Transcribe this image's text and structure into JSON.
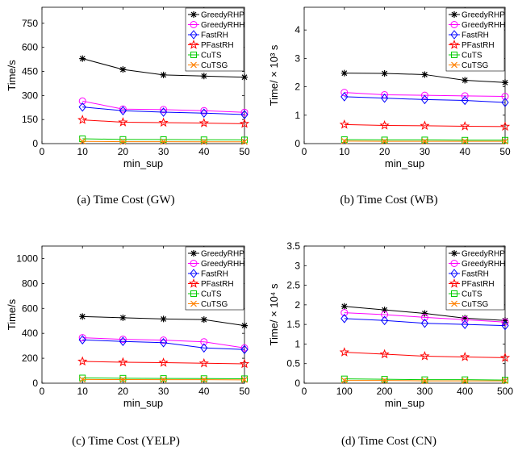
{
  "chart_data": [
    {
      "type": "line",
      "caption": "(a) Time Cost (GW)",
      "xlabel": "min_sup",
      "ylabel": "Time/s",
      "x": [
        10,
        20,
        30,
        40,
        50
      ],
      "xlim": [
        0,
        50
      ],
      "xticks": [
        0,
        10,
        20,
        30,
        40,
        50
      ],
      "ylim": [
        0,
        850
      ],
      "yticks": [
        0,
        150,
        300,
        450,
        600,
        750
      ],
      "series": [
        {
          "name": "GreedyRHP",
          "color": "#000000",
          "marker": "asterisk",
          "values": [
            530,
            462,
            428,
            421,
            414
          ]
        },
        {
          "name": "GreedyRHH",
          "color": "#ff00ff",
          "marker": "circle",
          "values": [
            265,
            215,
            212,
            205,
            195
          ]
        },
        {
          "name": "FastRH",
          "color": "#0000ff",
          "marker": "diamond",
          "values": [
            228,
            205,
            196,
            190,
            181
          ]
        },
        {
          "name": "PFastRH",
          "color": "#ff0000",
          "marker": "star",
          "values": [
            148,
            133,
            131,
            128,
            124
          ]
        },
        {
          "name": "CuTS",
          "color": "#00cc00",
          "marker": "square",
          "values": [
            30,
            26,
            25,
            24,
            23
          ]
        },
        {
          "name": "CuTSG",
          "color": "#ff8000",
          "marker": "x",
          "values": [
            14,
            12,
            12,
            11,
            11
          ]
        }
      ]
    },
    {
      "type": "line",
      "caption": "(b) Time Cost (WB)",
      "xlabel": "min_sup",
      "ylabel": "Time/ × 10³ s",
      "x": [
        10,
        20,
        30,
        40,
        50
      ],
      "xlim": [
        0,
        50
      ],
      "xticks": [
        0,
        10,
        20,
        30,
        40,
        50
      ],
      "ylim": [
        0,
        4.8
      ],
      "yticks": [
        0,
        1,
        2,
        3,
        4
      ],
      "series": [
        {
          "name": "GreedyRHP",
          "color": "#000000",
          "marker": "asterisk",
          "values": [
            2.48,
            2.47,
            2.43,
            2.23,
            2.15
          ]
        },
        {
          "name": "GreedyRHH",
          "color": "#ff00ff",
          "marker": "circle",
          "values": [
            1.8,
            1.72,
            1.7,
            1.68,
            1.66
          ]
        },
        {
          "name": "FastRH",
          "color": "#0000ff",
          "marker": "diamond",
          "values": [
            1.65,
            1.6,
            1.55,
            1.52,
            1.45
          ]
        },
        {
          "name": "PFastRH",
          "color": "#ff0000",
          "marker": "star",
          "values": [
            0.67,
            0.64,
            0.63,
            0.61,
            0.6
          ]
        },
        {
          "name": "CuTS",
          "color": "#00cc00",
          "marker": "square",
          "values": [
            0.14,
            0.13,
            0.13,
            0.12,
            0.12
          ]
        },
        {
          "name": "CuTSG",
          "color": "#ff8000",
          "marker": "x",
          "values": [
            0.09,
            0.08,
            0.08,
            0.08,
            0.08
          ]
        }
      ]
    },
    {
      "type": "line",
      "caption": "(c) Time Cost (YELP)",
      "xlabel": "min_sup",
      "ylabel": "Time/s",
      "x": [
        10,
        20,
        30,
        40,
        50
      ],
      "xlim": [
        0,
        50
      ],
      "xticks": [
        0,
        10,
        20,
        30,
        40,
        50
      ],
      "ylim": [
        0,
        1100
      ],
      "yticks": [
        0,
        200,
        400,
        600,
        800,
        1000
      ],
      "series": [
        {
          "name": "GreedyRHP",
          "color": "#000000",
          "marker": "asterisk",
          "values": [
            535,
            525,
            515,
            510,
            462
          ]
        },
        {
          "name": "GreedyRHH",
          "color": "#ff00ff",
          "marker": "circle",
          "values": [
            365,
            352,
            345,
            332,
            283
          ]
        },
        {
          "name": "FastRH",
          "color": "#0000ff",
          "marker": "diamond",
          "values": [
            348,
            335,
            325,
            283,
            270
          ]
        },
        {
          "name": "PFastRH",
          "color": "#ff0000",
          "marker": "star",
          "values": [
            175,
            168,
            165,
            160,
            155
          ]
        },
        {
          "name": "CuTS",
          "color": "#00cc00",
          "marker": "square",
          "values": [
            42,
            40,
            38,
            37,
            36
          ]
        },
        {
          "name": "CuTSG",
          "color": "#ff8000",
          "marker": "x",
          "values": [
            30,
            29,
            28,
            28,
            27
          ]
        }
      ]
    },
    {
      "type": "line",
      "caption": "(d) Time Cost (CN)",
      "xlabel": "min_sup",
      "ylabel": "Time/ × 10⁴ s",
      "x": [
        100,
        200,
        300,
        400,
        500
      ],
      "xlim": [
        0,
        500
      ],
      "xticks": [
        0,
        100,
        200,
        300,
        400,
        500
      ],
      "ylim": [
        0,
        3.5
      ],
      "yticks": [
        0,
        0.5,
        1,
        1.5,
        2,
        2.5,
        3,
        3.5
      ],
      "series": [
        {
          "name": "GreedyRHP",
          "color": "#000000",
          "marker": "asterisk",
          "values": [
            1.96,
            1.87,
            1.78,
            1.66,
            1.6
          ]
        },
        {
          "name": "GreedyRHH",
          "color": "#ff00ff",
          "marker": "circle",
          "values": [
            1.8,
            1.75,
            1.68,
            1.62,
            1.56
          ]
        },
        {
          "name": "FastRH",
          "color": "#0000ff",
          "marker": "diamond",
          "values": [
            1.65,
            1.6,
            1.53,
            1.5,
            1.47
          ]
        },
        {
          "name": "PFastRH",
          "color": "#ff0000",
          "marker": "star",
          "values": [
            0.79,
            0.74,
            0.69,
            0.67,
            0.65
          ]
        },
        {
          "name": "CuTS",
          "color": "#00cc00",
          "marker": "square",
          "values": [
            0.11,
            0.1,
            0.09,
            0.09,
            0.08
          ]
        },
        {
          "name": "CuTSG",
          "color": "#ff8000",
          "marker": "x",
          "values": [
            0.07,
            0.07,
            0.06,
            0.06,
            0.06
          ]
        }
      ]
    }
  ]
}
